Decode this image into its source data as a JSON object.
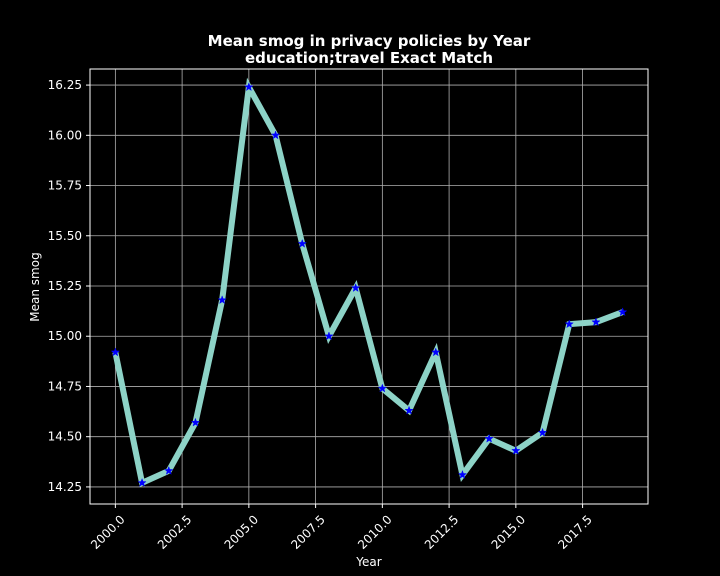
{
  "chart_data": {
    "type": "line",
    "title": "Mean smog in privacy policies by Year",
    "subtitle": "education;travel Exact Match",
    "xlabel": "Year",
    "ylabel": "Mean smog",
    "xlim": [
      1999.05,
      2019.95
    ],
    "ylim": [
      14.165,
      16.33
    ],
    "grid": true,
    "x_ticks": [
      2000.0,
      2002.5,
      2005.0,
      2007.5,
      2010.0,
      2012.5,
      2015.0,
      2017.5
    ],
    "x_tick_labels": [
      "2000.0",
      "2002.5",
      "2005.0",
      "2007.5",
      "2010.0",
      "2012.5",
      "2015.0",
      "2017.5"
    ],
    "y_ticks": [
      14.25,
      14.5,
      14.75,
      15.0,
      15.25,
      15.5,
      15.75,
      16.0,
      16.25
    ],
    "y_tick_labels": [
      "14.25",
      "14.50",
      "14.75",
      "15.00",
      "15.25",
      "15.50",
      "15.75",
      "16.00",
      "16.25"
    ],
    "series": [
      {
        "x": [
          2000,
          2001,
          2002,
          2003,
          2004,
          2005,
          2006,
          2007,
          2008,
          2009,
          2010,
          2011,
          2012,
          2013,
          2014,
          2015,
          2016,
          2017,
          2018,
          2019
        ],
        "values": [
          14.92,
          14.27,
          14.33,
          14.57,
          15.18,
          16.24,
          16.0,
          15.46,
          15.0,
          15.24,
          14.74,
          14.63,
          14.92,
          14.31,
          14.49,
          14.43,
          14.52,
          15.06,
          15.07,
          15.12
        ],
        "line_color": "#8dd3c7",
        "marker_color": "#0000ff",
        "marker": "star"
      }
    ]
  }
}
